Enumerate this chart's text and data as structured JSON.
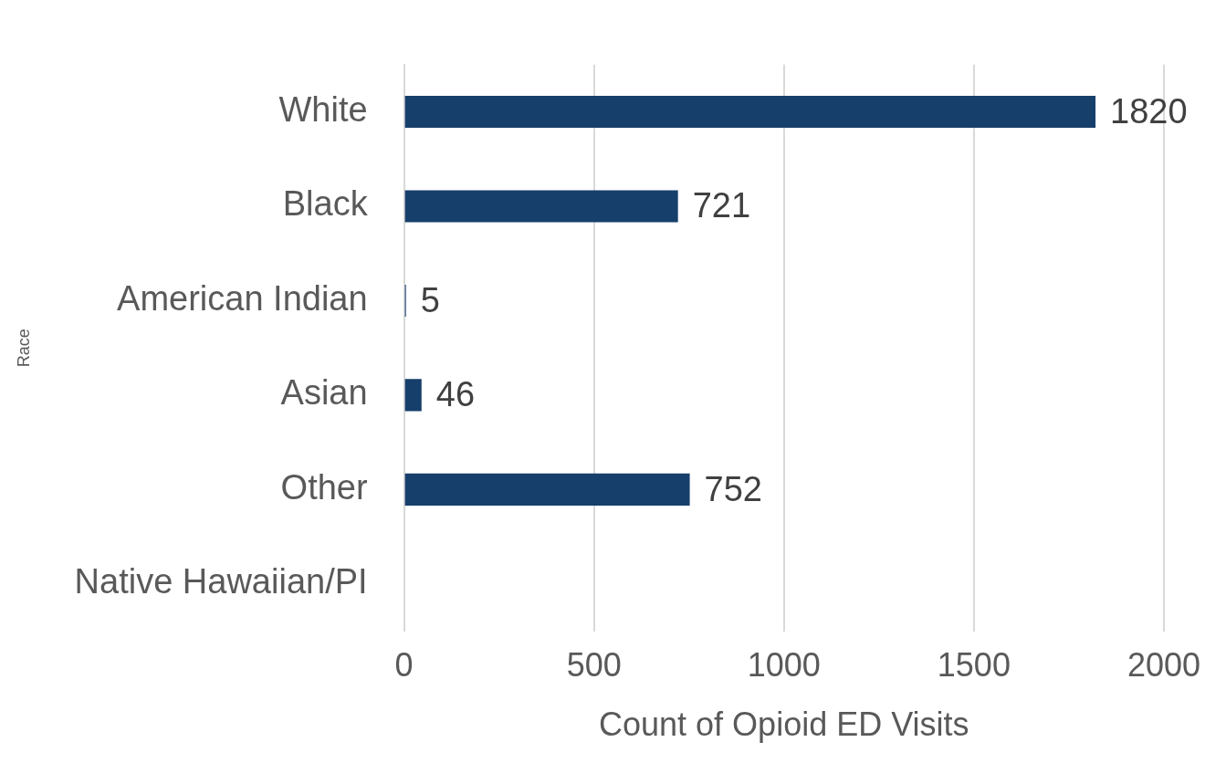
{
  "chart_data": {
    "type": "bar",
    "orientation": "horizontal",
    "xlabel": "Count of Opioid ED Visits",
    "ylabel": "Race",
    "categories": [
      "White",
      "Black",
      "American Indian",
      "Asian",
      "Other",
      "Native Hawaiian/PI"
    ],
    "values": [
      1820,
      721,
      5,
      46,
      752,
      null
    ],
    "color": "#173f6b",
    "xlim": [
      0,
      2000
    ],
    "xticks": [
      0,
      500,
      1000,
      1500,
      2000
    ],
    "grid": "x",
    "data_labels": true,
    "legend": false
  }
}
